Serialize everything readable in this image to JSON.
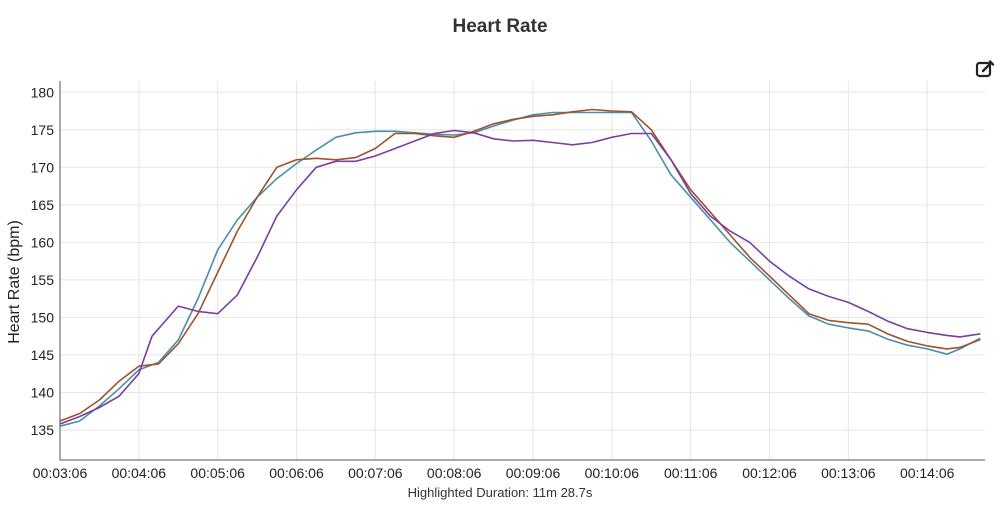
{
  "chart_data": {
    "type": "line",
    "title": "Heart Rate",
    "ylabel": "Heart Rate (bpm)",
    "xlabel": "",
    "ylim": [
      131,
      181.5
    ],
    "xlim": [
      "00:03:06",
      "00:14:50"
    ],
    "yticks": [
      135,
      140,
      145,
      150,
      155,
      160,
      165,
      170,
      175,
      180
    ],
    "xticks": [
      "00:03:06",
      "00:04:06",
      "00:05:06",
      "00:06:06",
      "00:07:06",
      "00:08:06",
      "00:09:06",
      "00:10:06",
      "00:11:06",
      "00:12:06",
      "00:13:06",
      "00:14:06"
    ],
    "grid": true,
    "legend": "none",
    "footer": "Highlighted Duration: 11m 28.7s",
    "series": [
      {
        "color": "#4a8fa8",
        "points": [
          [
            "00:03:06",
            135.5
          ],
          [
            "00:03:21",
            136.2
          ],
          [
            "00:03:36",
            138.2
          ],
          [
            "00:03:51",
            140.5
          ],
          [
            "00:04:06",
            143.0
          ],
          [
            "00:04:21",
            144.0
          ],
          [
            "00:04:36",
            147.0
          ],
          [
            "00:04:51",
            152.5
          ],
          [
            "00:05:06",
            159.0
          ],
          [
            "00:05:21",
            163.0
          ],
          [
            "00:05:36",
            166.0
          ],
          [
            "00:05:51",
            168.5
          ],
          [
            "00:06:06",
            170.5
          ],
          [
            "00:06:21",
            172.3
          ],
          [
            "00:06:36",
            174.0
          ],
          [
            "00:06:51",
            174.6
          ],
          [
            "00:07:06",
            174.8
          ],
          [
            "00:07:21",
            174.8
          ],
          [
            "00:07:36",
            174.6
          ],
          [
            "00:07:51",
            174.4
          ],
          [
            "00:08:06",
            174.3
          ],
          [
            "00:08:21",
            174.6
          ],
          [
            "00:08:36",
            175.5
          ],
          [
            "00:08:51",
            176.3
          ],
          [
            "00:09:06",
            177.0
          ],
          [
            "00:09:21",
            177.3
          ],
          [
            "00:09:36",
            177.3
          ],
          [
            "00:09:51",
            177.3
          ],
          [
            "00:10:06",
            177.3
          ],
          [
            "00:10:21",
            177.3
          ],
          [
            "00:10:36",
            173.5
          ],
          [
            "00:10:51",
            169.0
          ],
          [
            "00:11:06",
            166.0
          ],
          [
            "00:11:21",
            163.0
          ],
          [
            "00:11:36",
            160.0
          ],
          [
            "00:11:51",
            157.5
          ],
          [
            "00:12:06",
            155.0
          ],
          [
            "00:12:21",
            152.5
          ],
          [
            "00:12:36",
            150.2
          ],
          [
            "00:12:51",
            149.1
          ],
          [
            "00:13:06",
            148.6
          ],
          [
            "00:13:21",
            148.2
          ],
          [
            "00:13:36",
            147.1
          ],
          [
            "00:13:51",
            146.3
          ],
          [
            "00:14:06",
            145.8
          ],
          [
            "00:14:21",
            145.1
          ],
          [
            "00:14:31",
            145.8
          ],
          [
            "00:14:46",
            147.2
          ]
        ]
      },
      {
        "color": "#a0522d",
        "points": [
          [
            "00:03:06",
            136.2
          ],
          [
            "00:03:21",
            137.2
          ],
          [
            "00:03:36",
            139.0
          ],
          [
            "00:03:51",
            141.5
          ],
          [
            "00:04:06",
            143.5
          ],
          [
            "00:04:21",
            143.8
          ],
          [
            "00:04:36",
            146.5
          ],
          [
            "00:04:51",
            150.5
          ],
          [
            "00:05:06",
            156.0
          ],
          [
            "00:05:21",
            161.5
          ],
          [
            "00:05:36",
            166.0
          ],
          [
            "00:05:51",
            170.0
          ],
          [
            "00:06:06",
            171.0
          ],
          [
            "00:06:21",
            171.2
          ],
          [
            "00:06:36",
            171.0
          ],
          [
            "00:06:51",
            171.3
          ],
          [
            "00:07:06",
            172.5
          ],
          [
            "00:07:21",
            174.5
          ],
          [
            "00:07:36",
            174.5
          ],
          [
            "00:07:51",
            174.2
          ],
          [
            "00:08:06",
            174.0
          ],
          [
            "00:08:21",
            174.8
          ],
          [
            "00:08:36",
            175.8
          ],
          [
            "00:08:51",
            176.4
          ],
          [
            "00:09:06",
            176.8
          ],
          [
            "00:09:21",
            177.0
          ],
          [
            "00:09:36",
            177.4
          ],
          [
            "00:09:51",
            177.7
          ],
          [
            "00:10:06",
            177.5
          ],
          [
            "00:10:21",
            177.4
          ],
          [
            "00:10:36",
            175.0
          ],
          [
            "00:10:51",
            171.0
          ],
          [
            "00:11:06",
            167.0
          ],
          [
            "00:11:21",
            164.0
          ],
          [
            "00:11:36",
            161.0
          ],
          [
            "00:11:51",
            158.0
          ],
          [
            "00:12:06",
            155.5
          ],
          [
            "00:12:21",
            153.0
          ],
          [
            "00:12:36",
            150.5
          ],
          [
            "00:12:51",
            149.6
          ],
          [
            "00:13:06",
            149.3
          ],
          [
            "00:13:21",
            149.1
          ],
          [
            "00:13:36",
            147.8
          ],
          [
            "00:13:51",
            146.8
          ],
          [
            "00:14:06",
            146.2
          ],
          [
            "00:14:21",
            145.8
          ],
          [
            "00:14:31",
            146.0
          ],
          [
            "00:14:46",
            147.0
          ]
        ]
      },
      {
        "color": "#7b3fa0",
        "points": [
          [
            "00:03:06",
            135.8
          ],
          [
            "00:03:21",
            136.8
          ],
          [
            "00:03:36",
            138.0
          ],
          [
            "00:03:51",
            139.5
          ],
          [
            "00:04:06",
            142.5
          ],
          [
            "00:04:16",
            147.5
          ],
          [
            "00:04:36",
            151.5
          ],
          [
            "00:04:51",
            150.8
          ],
          [
            "00:05:06",
            150.5
          ],
          [
            "00:05:21",
            153.0
          ],
          [
            "00:05:36",
            158.0
          ],
          [
            "00:05:51",
            163.5
          ],
          [
            "00:06:06",
            167.0
          ],
          [
            "00:06:21",
            170.0
          ],
          [
            "00:06:36",
            170.8
          ],
          [
            "00:06:51",
            170.8
          ],
          [
            "00:07:06",
            171.5
          ],
          [
            "00:07:21",
            172.5
          ],
          [
            "00:07:36",
            173.5
          ],
          [
            "00:07:51",
            174.5
          ],
          [
            "00:08:06",
            174.9
          ],
          [
            "00:08:21",
            174.6
          ],
          [
            "00:08:36",
            173.8
          ],
          [
            "00:08:51",
            173.5
          ],
          [
            "00:09:06",
            173.6
          ],
          [
            "00:09:21",
            173.3
          ],
          [
            "00:09:36",
            173.0
          ],
          [
            "00:09:51",
            173.3
          ],
          [
            "00:10:06",
            174.0
          ],
          [
            "00:10:21",
            174.5
          ],
          [
            "00:10:36",
            174.5
          ],
          [
            "00:10:51",
            171.0
          ],
          [
            "00:11:06",
            166.5
          ],
          [
            "00:11:21",
            163.5
          ],
          [
            "00:11:36",
            161.5
          ],
          [
            "00:11:51",
            160.0
          ],
          [
            "00:12:06",
            157.5
          ],
          [
            "00:12:21",
            155.5
          ],
          [
            "00:12:36",
            153.8
          ],
          [
            "00:12:51",
            152.8
          ],
          [
            "00:13:06",
            152.0
          ],
          [
            "00:13:21",
            150.8
          ],
          [
            "00:13:36",
            149.5
          ],
          [
            "00:13:51",
            148.5
          ],
          [
            "00:14:06",
            148.0
          ],
          [
            "00:14:21",
            147.6
          ],
          [
            "00:14:31",
            147.4
          ],
          [
            "00:14:46",
            147.8
          ]
        ]
      }
    ]
  },
  "toolbar": {
    "edit_icon": "edit-icon"
  }
}
